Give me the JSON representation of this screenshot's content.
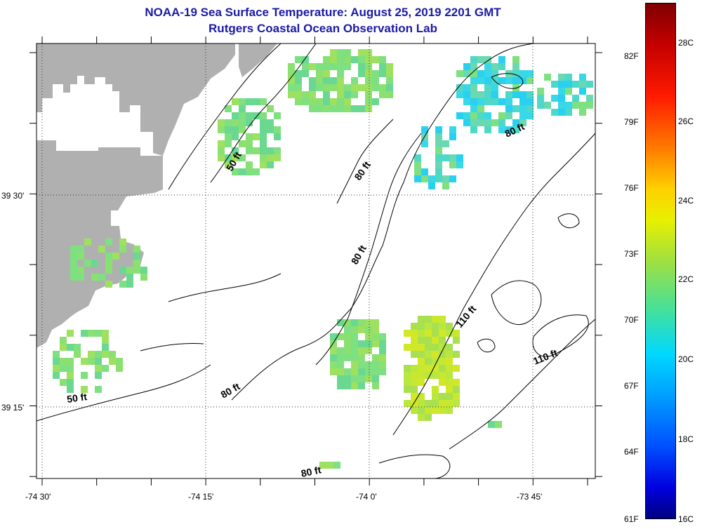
{
  "header": {
    "title": "NOAA-19 Sea Surface Temperature:  August 25, 2019 2201 GMT",
    "subtitle": "Rutgers Coastal Ocean Observation Lab"
  },
  "map": {
    "lat_labels": [
      "39 30'",
      "39 15'"
    ],
    "lon_labels": [
      "-74 30'",
      "-74 15'",
      "-74 0'",
      "-73 45'"
    ],
    "contour_labels": [
      "50 ft",
      "50 ft",
      "80 ft",
      "80 ft",
      "80 ft",
      "80 ft",
      "80 ft",
      "110 ft",
      "110 ft"
    ],
    "colors": {
      "land": "#b0b0b0",
      "background": "#ffffff",
      "title": "#1a1aa6"
    }
  },
  "colorbar": {
    "fahrenheit_labels": [
      "82F",
      "79F",
      "76F",
      "73F",
      "70F",
      "67F",
      "64F",
      "61F"
    ],
    "celsius_labels": [
      "28C",
      "26C",
      "24C",
      "22C",
      "20C",
      "18C",
      "16C"
    ]
  }
}
